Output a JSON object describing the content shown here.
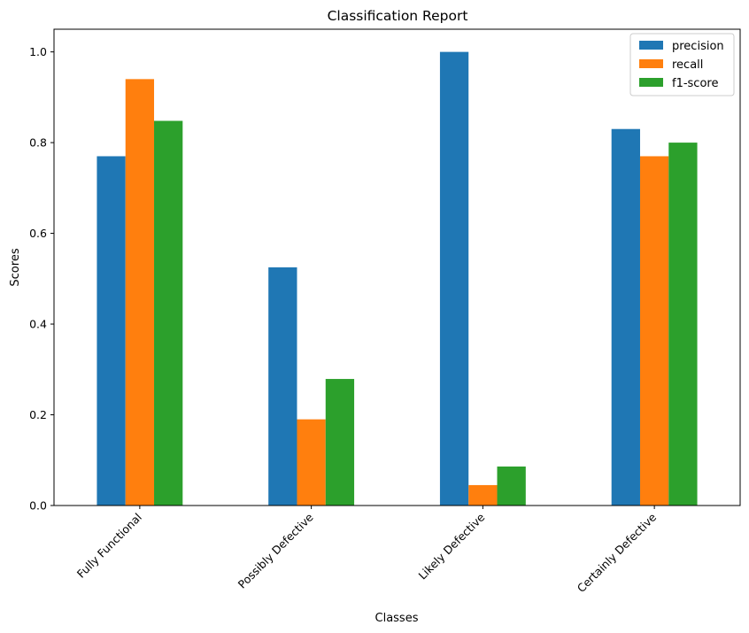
{
  "chart_data": {
    "type": "bar",
    "title": "Classification Report",
    "xlabel": "Classes",
    "ylabel": "Scores",
    "categories": [
      "Fully Functional",
      "Possibly Defective",
      "Likely Defective",
      "Certainly Defective"
    ],
    "series": [
      {
        "name": "precision",
        "color": "#1f77b4",
        "values": [
          0.77,
          0.525,
          1.0,
          0.83
        ]
      },
      {
        "name": "recall",
        "color": "#ff7f0e",
        "values": [
          0.94,
          0.19,
          0.045,
          0.77
        ]
      },
      {
        "name": "f1-score",
        "color": "#2ca02c",
        "values": [
          0.848,
          0.279,
          0.086,
          0.8
        ]
      }
    ],
    "ylim": [
      0,
      1.05
    ],
    "yticks": [
      "0.0",
      "0.2",
      "0.4",
      "0.6",
      "0.8",
      "1.0"
    ],
    "grid": false,
    "legend": "top-right"
  }
}
